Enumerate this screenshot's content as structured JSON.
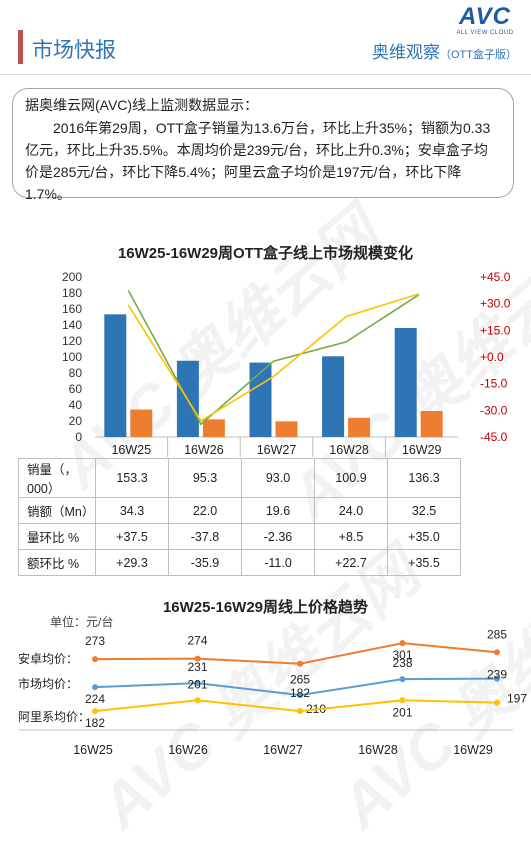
{
  "header": {
    "title": "市场快报",
    "subtitle": "奥维观察",
    "subtitle_small": "（OTT盒子版）",
    "logo_text": "AVC",
    "logo_tagline": "ALL VIEW CLOUD"
  },
  "summary": {
    "lead": "据奥维云网(AVC)线上监测数据显示：",
    "body": "2016年第29周，OTT盒子销量为13.6万台，环比上升35%；销额为0.33亿元，环比上升35.5%。本周均价是239元/台，环比上升0.3%；安卓盒子均价是285元/台，环比下降5.4%；阿里云盒子均价是197元/台，环比下降1.7%。"
  },
  "watermark": "AVC 奥维云网",
  "chart_data": [
    {
      "type": "bar",
      "title": "16W25-16W29周OTT盒子线上市场规模变化",
      "categories": [
        "16W25",
        "16W26",
        "16W27",
        "16W28",
        "16W29"
      ],
      "series": [
        {
          "name": "销量（，000）",
          "values": [
            153.3,
            95.3,
            93.0,
            100.9,
            136.3
          ],
          "color": "#2e75b6",
          "axis": "left"
        },
        {
          "name": "销额（Mn）",
          "values": [
            34.3,
            22.0,
            19.6,
            24.0,
            32.5
          ],
          "color": "#ed7d31",
          "axis": "left"
        },
        {
          "name": "量环比 %",
          "values": [
            37.5,
            -37.8,
            -2.36,
            8.5,
            35.0
          ],
          "color": "#70ad47",
          "axis": "right",
          "kind": "line"
        },
        {
          "name": "额环比 %",
          "values": [
            29.3,
            -35.9,
            -11.0,
            22.7,
            35.5
          ],
          "color": "#ffc000",
          "axis": "right",
          "kind": "line"
        }
      ],
      "left_axis": {
        "min": 0,
        "max": 200,
        "ticks": [
          "0",
          "20",
          "40",
          "60",
          "80",
          "100",
          "120",
          "140",
          "160",
          "180",
          "200"
        ]
      },
      "right_axis": {
        "min": -45,
        "max": 45,
        "ticks": [
          "-45.0",
          "-30.0",
          "-15.0",
          "+0.0",
          "+15.0",
          "+30.0",
          "+45.0"
        ],
        "color": "#c00000"
      },
      "table": {
        "rows": [
          {
            "label": "销量（，000）",
            "cells": [
              "153.3",
              "95.3",
              "93.0",
              "100.9",
              "136.3"
            ]
          },
          {
            "label": "销额（Mn）",
            "cells": [
              "34.3",
              "22.0",
              "19.6",
              "24.0",
              "32.5"
            ]
          },
          {
            "label": "量环比 %",
            "cells": [
              "+37.5",
              "-37.8",
              "-2.36",
              "+8.5",
              "+35.0"
            ]
          },
          {
            "label": "额环比 %",
            "cells": [
              "+29.3",
              "-35.9",
              "-11.0",
              "+22.7",
              "+35.5"
            ]
          }
        ]
      }
    },
    {
      "type": "line",
      "title": "16W25-16W29周线上价格趋势",
      "unit": "单位：元/台",
      "categories": [
        "16W25",
        "16W26",
        "16W27",
        "16W28",
        "16W29"
      ],
      "series": [
        {
          "name": "安卓均价：",
          "values": [
            273,
            274,
            265,
            301,
            285
          ],
          "color": "#ed7d31"
        },
        {
          "name": "市场均价：",
          "values": [
            224,
            231,
            210,
            238,
            239
          ],
          "color": "#5b9bd5"
        },
        {
          "name": "阿里系均价：",
          "values": [
            182,
            201,
            182,
            201,
            197
          ],
          "color": "#ffc000"
        }
      ]
    }
  ]
}
